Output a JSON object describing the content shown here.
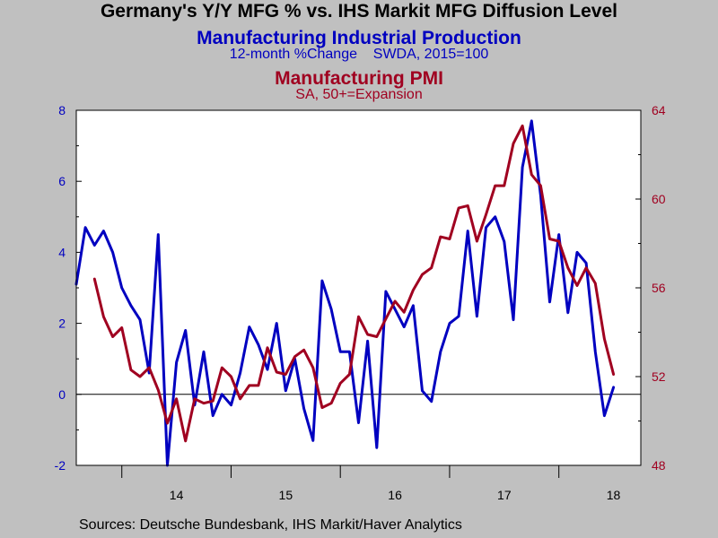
{
  "chart_data": {
    "type": "line",
    "title": "Germany's Y/Y MFG % vs. IHS Markit MFG Diffusion Level",
    "series": [
      {
        "name": "Manufacturing Industrial Production",
        "subtitle": "12-month %Change    SWDA, 2015=100",
        "axis": "left",
        "color": "#0000c0",
        "start": "2013-08",
        "values": [
          3.1,
          4.7,
          4.2,
          4.6,
          4.0,
          3.0,
          2.5,
          2.1,
          0.6,
          4.5,
          -2.0,
          0.9,
          1.8,
          -0.3,
          1.2,
          -0.6,
          0.0,
          -0.3,
          0.6,
          1.9,
          1.4,
          0.7,
          2.0,
          0.1,
          1.0,
          -0.4,
          -1.3,
          3.2,
          2.4,
          1.2,
          1.2,
          -0.8,
          1.5,
          -1.5,
          2.9,
          2.4,
          1.9,
          2.5,
          0.1,
          -0.2,
          1.2,
          2.0,
          2.2,
          4.6,
          2.2,
          4.7,
          5.0,
          4.3,
          2.1,
          6.4,
          7.7,
          5.6,
          2.6,
          4.5,
          2.3,
          4.0,
          3.7,
          1.2,
          -0.6,
          0.2
        ]
      },
      {
        "name": "Manufacturing PMI",
        "subtitle": "SA, 50+=Expansion",
        "axis": "right",
        "color": "#a00020",
        "start": "2013-10",
        "values": [
          56.4,
          54.7,
          53.8,
          54.2,
          52.3,
          52.0,
          52.4,
          51.4,
          49.9,
          51.0,
          49.1,
          51.0,
          50.8,
          50.9,
          52.4,
          52.0,
          51.0,
          51.6,
          51.6,
          53.3,
          52.2,
          52.1,
          52.9,
          53.2,
          52.4,
          50.6,
          50.8,
          51.7,
          52.1,
          54.7,
          53.9,
          53.8,
          54.6,
          55.4,
          54.9,
          55.9,
          56.6,
          56.9,
          58.3,
          58.2,
          59.6,
          59.7,
          58.1,
          59.3,
          60.6,
          60.6,
          62.5,
          63.3,
          61.1,
          60.6,
          58.2,
          58.1,
          56.9,
          56.1,
          56.9,
          56.2,
          53.7,
          52.1
        ]
      }
    ],
    "x_ticks": [
      "14",
      "15",
      "16",
      "17",
      "18"
    ],
    "y_left": {
      "min": -2,
      "max": 8,
      "ticks": [
        -2,
        0,
        2,
        4,
        6,
        8
      ]
    },
    "y_right": {
      "min": 48,
      "max": 64,
      "ticks": [
        48,
        52,
        56,
        60,
        64
      ]
    },
    "grid": false,
    "source": "Sources:  Deutsche Bundesbank, IHS Markit/Haver Analytics"
  }
}
